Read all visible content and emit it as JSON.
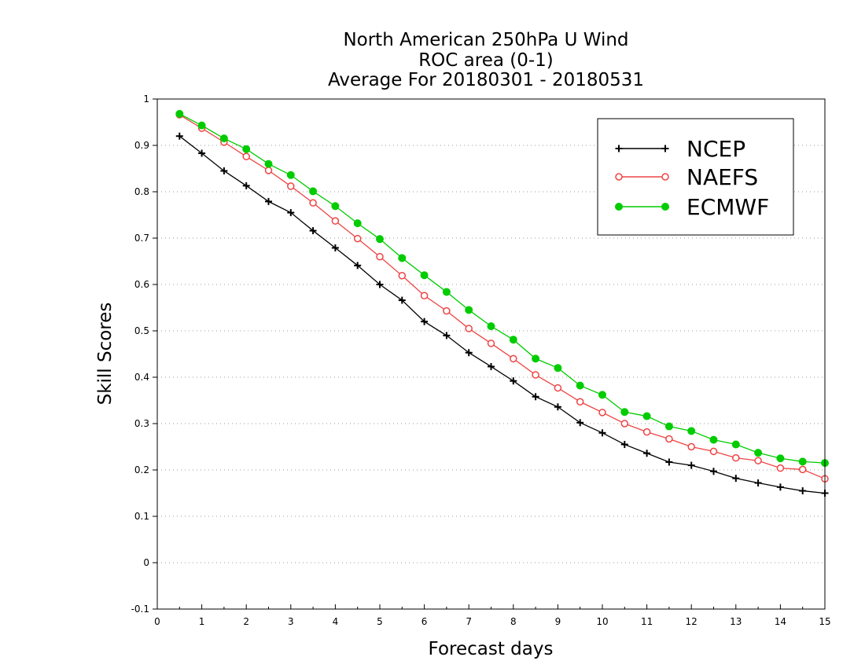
{
  "chart_data": {
    "type": "line",
    "title": [
      "North American 250hPa U Wind",
      "ROC area (0-1)",
      "Average For 20180301 - 20180531"
    ],
    "xlabel": "Forecast days",
    "ylabel": "Skill Scores",
    "xlim": [
      0,
      15
    ],
    "ylim": [
      -0.1,
      1
    ],
    "xticks": [
      0,
      1,
      2,
      3,
      4,
      5,
      6,
      7,
      8,
      9,
      10,
      11,
      12,
      13,
      14,
      15
    ],
    "yticks": [
      -0.1,
      0,
      0.1,
      0.2,
      0.3,
      0.4,
      0.5,
      0.6,
      0.7,
      0.8,
      0.9,
      1
    ],
    "ytick_labels": [
      "-0.1",
      "0",
      "0.1",
      "0.2",
      "0.3",
      "0.4",
      "0.5",
      "0.6",
      "0.7",
      "0.8",
      "0.9",
      "1"
    ],
    "xtick_labels": [
      "0",
      "1",
      "2",
      "3",
      "4",
      "5",
      "6",
      "7",
      "8",
      "9",
      "10",
      "11",
      "12",
      "13",
      "14",
      "15"
    ],
    "grid": "horizontal-dotted",
    "legend_position": "top-right",
    "x": [
      0.5,
      1,
      1.5,
      2,
      2.5,
      3,
      3.5,
      4,
      4.5,
      5,
      5.5,
      6,
      6.5,
      7,
      7.5,
      8,
      8.5,
      9,
      9.5,
      10,
      10.5,
      11,
      11.5,
      12,
      12.5,
      13,
      13.5,
      14,
      14.5,
      15
    ],
    "series": [
      {
        "name": "NCEP",
        "color": "#000000",
        "marker": "plus",
        "values": [
          0.92,
          0.883,
          0.845,
          0.813,
          0.779,
          0.755,
          0.716,
          0.679,
          0.641,
          0.6,
          0.566,
          0.52,
          0.49,
          0.453,
          0.423,
          0.392,
          0.358,
          0.336,
          0.302,
          0.28,
          0.255,
          0.236,
          0.217,
          0.21,
          0.197,
          0.182,
          0.172,
          0.163,
          0.155,
          0.15
        ]
      },
      {
        "name": "NAEFS",
        "color": "#ee4444",
        "marker": "open-circle",
        "values": [
          0.966,
          0.937,
          0.907,
          0.876,
          0.846,
          0.812,
          0.776,
          0.737,
          0.699,
          0.66,
          0.619,
          0.576,
          0.543,
          0.505,
          0.473,
          0.44,
          0.405,
          0.377,
          0.347,
          0.324,
          0.3,
          0.282,
          0.267,
          0.25,
          0.24,
          0.226,
          0.22,
          0.204,
          0.201,
          0.181
        ]
      },
      {
        "name": "ECMWF",
        "color": "#00cc00",
        "marker": "filled-circle",
        "values": [
          0.968,
          0.943,
          0.915,
          0.892,
          0.86,
          0.836,
          0.801,
          0.769,
          0.732,
          0.698,
          0.657,
          0.62,
          0.584,
          0.545,
          0.51,
          0.481,
          0.44,
          0.42,
          0.382,
          0.362,
          0.325,
          0.316,
          0.294,
          0.284,
          0.265,
          0.255,
          0.237,
          0.225,
          0.218,
          0.215
        ]
      }
    ]
  }
}
